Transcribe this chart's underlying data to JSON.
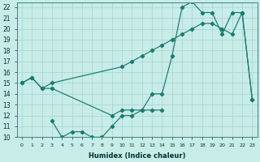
{
  "xlabel": "Humidex (Indice chaleur)",
  "xlim": [
    -0.5,
    23.5
  ],
  "ylim": [
    10,
    22.4
  ],
  "yticks": [
    10,
    11,
    12,
    13,
    14,
    15,
    16,
    17,
    18,
    19,
    20,
    21,
    22
  ],
  "xticks": [
    0,
    1,
    2,
    3,
    4,
    5,
    6,
    7,
    8,
    9,
    10,
    11,
    12,
    13,
    14,
    15,
    16,
    17,
    18,
    19,
    20,
    21,
    22,
    23
  ],
  "xtick_labels": [
    "0",
    "1",
    "2",
    "3",
    "4",
    "5",
    "6",
    "7",
    "8",
    "9",
    "10",
    "11",
    "12",
    "13",
    "14",
    "15",
    "16",
    "17",
    "18",
    "19",
    "20",
    "21",
    "22",
    "23"
  ],
  "bg_color": "#c8ece8",
  "line_color": "#1a7a6e",
  "grid_color": "#aad8d3",
  "line1_x": [
    0,
    1,
    2,
    3,
    10,
    11,
    12,
    13,
    14,
    15,
    16,
    17,
    18,
    19,
    20,
    21,
    22,
    23
  ],
  "line1_y": [
    15.0,
    15.5,
    14.5,
    15.0,
    16.5,
    17.0,
    17.5,
    18.0,
    18.5,
    19.0,
    19.5,
    20.0,
    20.5,
    20.5,
    20.0,
    19.5,
    21.5,
    13.5
  ],
  "line2_x": [
    0,
    1,
    2,
    3,
    9,
    10,
    11,
    12,
    13,
    14,
    15,
    16,
    17,
    18,
    19,
    20,
    21,
    22,
    23
  ],
  "line2_y": [
    15.0,
    15.5,
    14.5,
    14.5,
    12.0,
    12.5,
    12.5,
    12.5,
    14.0,
    14.0,
    17.5,
    22.0,
    22.5,
    21.5,
    21.5,
    19.5,
    21.5,
    21.5,
    13.5
  ],
  "line3_x": [
    3,
    4,
    5,
    6,
    7,
    8,
    9,
    10,
    11,
    12,
    13,
    14
  ],
  "line3_y": [
    11.5,
    10.0,
    10.5,
    10.5,
    10.0,
    10.0,
    11.0,
    12.0,
    12.0,
    12.5,
    12.5,
    12.5
  ]
}
